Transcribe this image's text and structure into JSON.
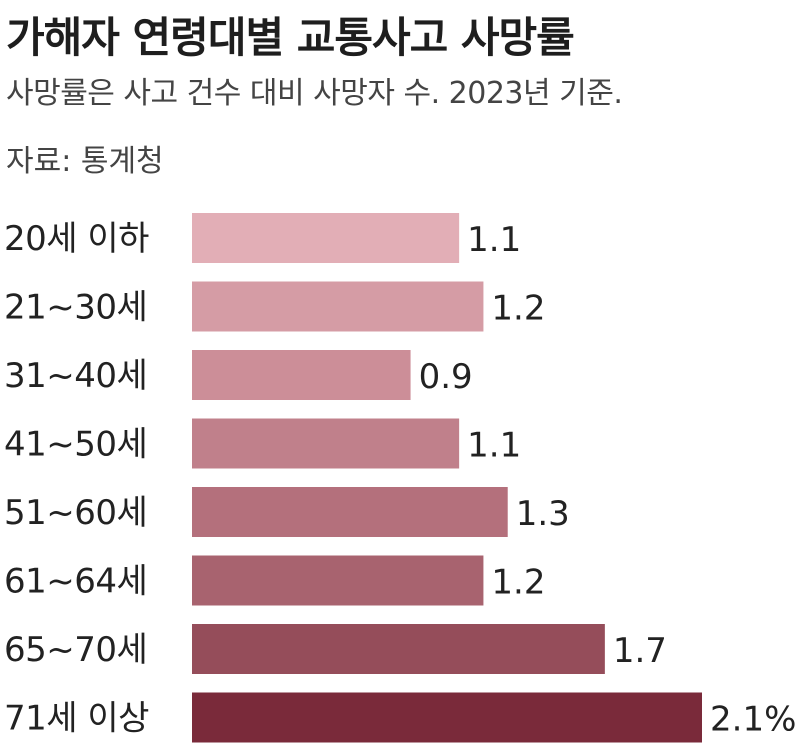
{
  "header": {
    "title": "가해자 연령대별 교통사고 사망률",
    "subtitle": "사망률은 사고 건수 대비 사망자 수. 2023년 기준.",
    "source": "자료: 통계청"
  },
  "chart_data": {
    "type": "bar",
    "orientation": "horizontal",
    "title": "가해자 연령대별 교통사고 사망률",
    "categories": [
      "20세 이하",
      "21~30세",
      "31~40세",
      "41~50세",
      "51~60세",
      "61~64세",
      "65~70세",
      "71세 이상"
    ],
    "values": [
      1.1,
      1.2,
      0.9,
      1.1,
      1.3,
      1.2,
      1.7,
      2.1
    ],
    "value_labels": [
      "1.1",
      "1.2",
      "0.9",
      "1.1",
      "1.3",
      "1.2",
      "1.7",
      "2.1%"
    ],
    "xlim": [
      0,
      2.1
    ],
    "grid": false,
    "colors": [
      "#e2aeb6",
      "#d59ca5",
      "#cc8e98",
      "#c0808b",
      "#b4707c",
      "#a8636f",
      "#954d5a",
      "#7a2a3a"
    ]
  }
}
